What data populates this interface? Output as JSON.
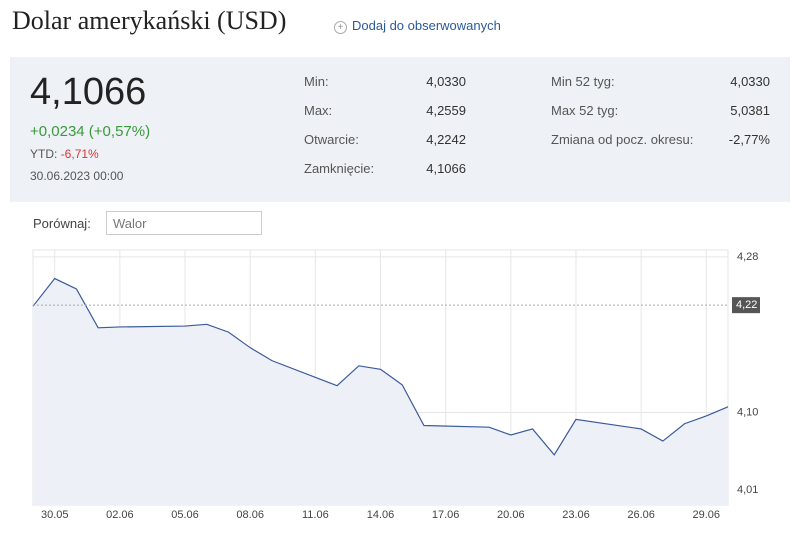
{
  "header": {
    "title": "Dolar amerykański (USD)",
    "follow": "Dodaj do obserwowanych"
  },
  "quote": {
    "price": "4,1066",
    "change": "+0,0234 (+0,57%)",
    "ytd_label": "YTD:",
    "ytd": "-6,71%",
    "datetime": "30.06.2023 00:00"
  },
  "stats": [
    [
      "Min:",
      "4,0330"
    ],
    [
      "Max:",
      "4,2559"
    ],
    [
      "Otwarcie:",
      "4,2242"
    ],
    [
      "Zamknięcie:",
      "4,1066"
    ],
    [
      "Min 52 tyg:",
      "4,0330"
    ],
    [
      "Max 52 tyg:",
      "5,0381"
    ],
    [
      "Zmiana od pocz. okresu:",
      "-2,77%"
    ]
  ],
  "compare": {
    "label": "Porównaj:",
    "placeholder": "Walor"
  },
  "chart_data": {
    "type": "line",
    "categories": [
      null,
      "30.05",
      null,
      null,
      "02.06",
      null,
      null,
      "05.06",
      null,
      null,
      "08.06",
      null,
      null,
      "11.06",
      null,
      null,
      "14.06",
      null,
      null,
      "17.06",
      null,
      null,
      "20.06",
      null,
      null,
      "23.06",
      null,
      null,
      "26.06",
      null,
      null,
      "29.06",
      null
    ],
    "series": [
      {
        "color": "#3a5a9a",
        "values": [
          4.223,
          4.255,
          4.243,
          4.198,
          4.199,
          null,
          null,
          4.2,
          4.202,
          4.193,
          4.175,
          4.16,
          null,
          null,
          4.131,
          4.154,
          4.15,
          4.132,
          4.085,
          null,
          null,
          4.083,
          4.074,
          4.081,
          4.051,
          4.092,
          null,
          null,
          4.081,
          4.067,
          4.087,
          4.096,
          4.1066
        ]
      }
    ],
    "ylim": [
      3.993,
      4.288
    ],
    "yticks": [
      {
        "value": 4.28,
        "label": "4,28"
      },
      {
        "value": 4.1,
        "label": "4,10"
      },
      {
        "value": 4.01,
        "label": "4,01"
      }
    ],
    "reference": {
      "value": 4.2242,
      "label": "4,22"
    },
    "connect_gaps": true,
    "grid": true
  }
}
